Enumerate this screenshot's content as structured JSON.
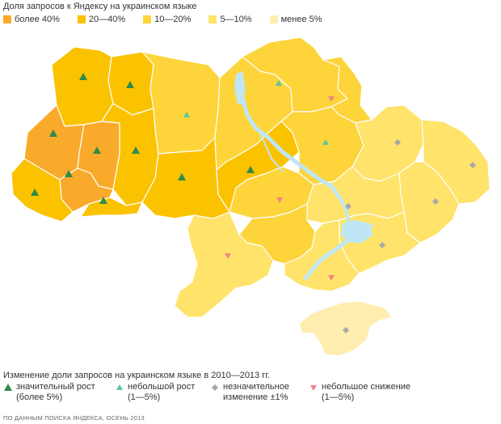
{
  "title": "Доля запросов к Яндексу на украинском языке",
  "share_legend": [
    {
      "label": "более 40%",
      "color": "#f9aa2a"
    },
    {
      "label": "20—40%",
      "color": "#fbc200"
    },
    {
      "label": "10—20%",
      "color": "#fdd43a"
    },
    {
      "label": "5—10%",
      "color": "#ffe36a"
    },
    {
      "label": "менее 5%",
      "color": "#ffeeb0"
    }
  ],
  "change_title": "Изменение доли запросов на украинском языке в 2010—2013 гг.",
  "change_legend": [
    {
      "line1": "значительный рост",
      "line2": "(более 5%)",
      "marker": "triangle-up",
      "color": "#2e8b4a"
    },
    {
      "line1": "небольшой рост",
      "line2": "(1—5%)",
      "marker": "triangle-up",
      "color": "#5dc3a0"
    },
    {
      "line1": "незначительное",
      "line2": "изменение ±1%",
      "marker": "diamond",
      "color": "#a8a8a8"
    },
    {
      "line1": "небольшое снижение",
      "line2": "(1—5%)",
      "marker": "triangle-down",
      "color": "#f2838a"
    }
  ],
  "source": "ПО ДАННЫМ ПОИСКА ЯНДЕКСА, ОСЕНЬ 2013",
  "map_colors": {
    "over40": "#f9aa2a",
    "c20_40": "#fbc200",
    "c10_20": "#fdd43a",
    "c5_10": "#ffe36a",
    "under5": "#ffeeb0",
    "border": "#ffffff",
    "river": "#bfe6f5"
  },
  "regions": [
    {
      "name": "volyn",
      "category": "20—40%",
      "change": "triangle-up-strong"
    },
    {
      "name": "rivne",
      "category": "20—40%",
      "change": "triangle-up-strong"
    },
    {
      "name": "lviv",
      "category": "более 40%",
      "change": "triangle-up-strong"
    },
    {
      "name": "ternopil",
      "category": "более 40%",
      "change": "triangle-up-strong"
    },
    {
      "name": "khmelnytskyi",
      "category": "20—40%",
      "change": "triangle-up-strong"
    },
    {
      "name": "ivano-frankivsk",
      "category": "более 40%",
      "change": "triangle-up-strong"
    },
    {
      "name": "zakarpattia",
      "category": "20—40%",
      "change": "triangle-up-strong"
    },
    {
      "name": "chernivtsi",
      "category": "20—40%",
      "change": "triangle-up-strong"
    },
    {
      "name": "zhytomyr",
      "category": "10—20%",
      "change": "triangle-up-small"
    },
    {
      "name": "vinnytsia",
      "category": "20—40%",
      "change": "triangle-up-strong"
    },
    {
      "name": "kyiv-oblast",
      "category": "10—20%",
      "change": "triangle-up-small"
    },
    {
      "name": "kyiv-city",
      "category": "20—40%",
      "change": "none"
    },
    {
      "name": "cherkasy",
      "category": "20—40%",
      "change": "triangle-up-strong"
    },
    {
      "name": "chernihiv",
      "category": "10—20%",
      "change": "triangle-down"
    },
    {
      "name": "poltava",
      "category": "10—20%",
      "change": "triangle-up-small"
    },
    {
      "name": "kirovohrad",
      "category": "10—20%",
      "change": "triangle-down"
    },
    {
      "name": "sumy",
      "category": "10—20%",
      "change": "none"
    },
    {
      "name": "kharkiv",
      "category": "5—10%",
      "change": "diamond"
    },
    {
      "name": "luhansk",
      "category": "5—10%",
      "change": "diamond"
    },
    {
      "name": "donetsk",
      "category": "5—10%",
      "change": "diamond"
    },
    {
      "name": "dnipropetrovsk",
      "category": "5—10%",
      "change": "diamond"
    },
    {
      "name": "zaporizhzhia",
      "category": "5—10%",
      "change": "diamond"
    },
    {
      "name": "odesa",
      "category": "5—10%",
      "change": "triangle-down"
    },
    {
      "name": "mykolaiv",
      "category": "10—20%",
      "change": "none"
    },
    {
      "name": "kherson",
      "category": "5—10%",
      "change": "triangle-down"
    },
    {
      "name": "crimea",
      "category": "менее 5%",
      "change": "diamond"
    }
  ]
}
